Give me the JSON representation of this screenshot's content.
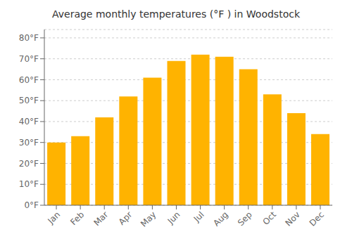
{
  "chart_data": {
    "type": "bar",
    "title": "Average monthly temperatures (°F ) in Woodstock",
    "categories": [
      "Jan",
      "Feb",
      "Mar",
      "Apr",
      "May",
      "Jun",
      "Jul",
      "Aug",
      "Sep",
      "Oct",
      "Nov",
      "Dec"
    ],
    "values": [
      30,
      33,
      42,
      52,
      61,
      69,
      72,
      71,
      65,
      53,
      44,
      34
    ],
    "color": "#FFB300",
    "ylim": [
      0,
      84
    ],
    "yticks": [
      {
        "value": 0,
        "label": "0°F"
      },
      {
        "value": 10,
        "label": "10°F"
      },
      {
        "value": 20,
        "label": "20°F"
      },
      {
        "value": 30,
        "label": "30°F"
      },
      {
        "value": 40,
        "label": "40°F"
      },
      {
        "value": 50,
        "label": "50°F"
      },
      {
        "value": 60,
        "label": "60°F"
      },
      {
        "value": 70,
        "label": "70°F"
      },
      {
        "value": 80,
        "label": "80°F"
      }
    ],
    "grid": true
  }
}
